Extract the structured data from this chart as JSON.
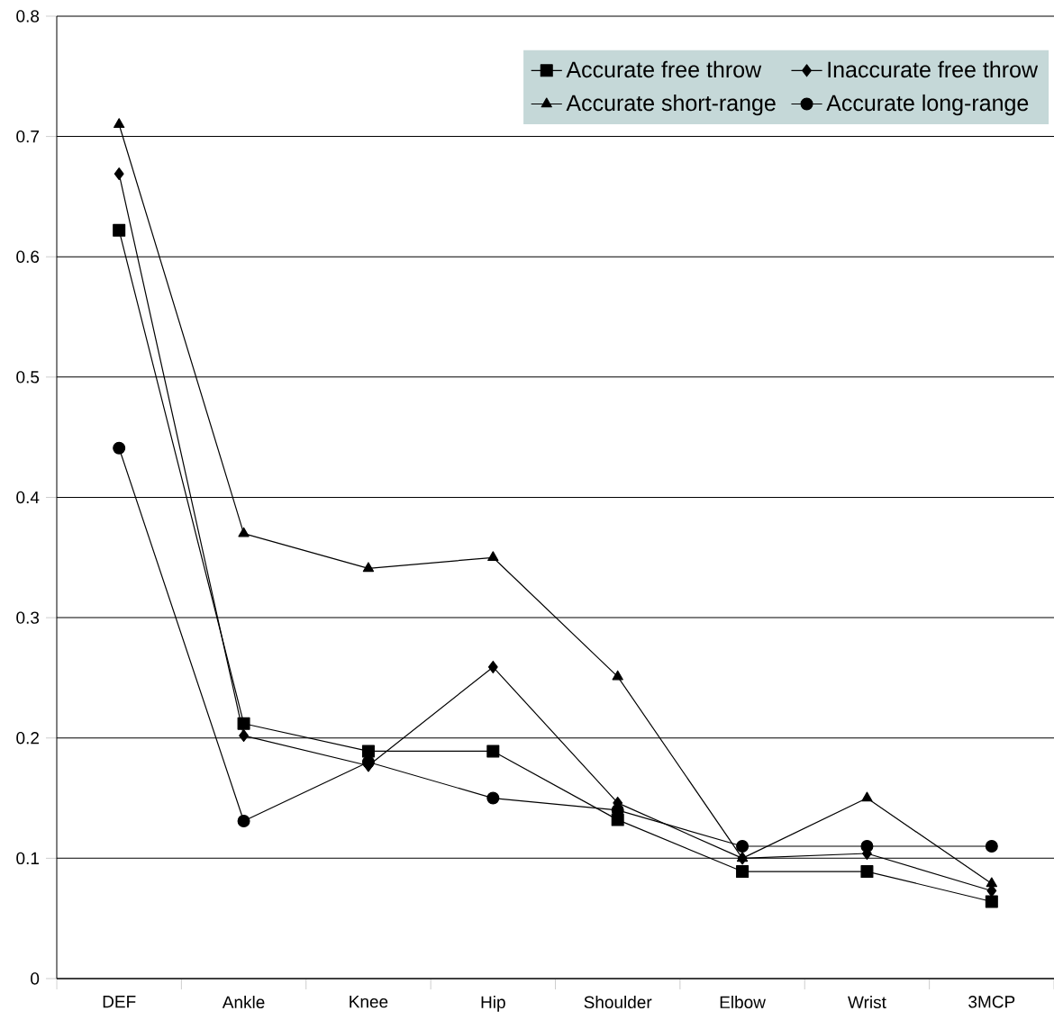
{
  "chart_data": {
    "type": "line",
    "categories": [
      "DEF",
      "Ankle",
      "Knee",
      "Hip",
      "Shoulder",
      "Elbow",
      "Wrist",
      "3MCP"
    ],
    "series": [
      {
        "name": "Accurate free throw",
        "color": "#000000",
        "marker": "square",
        "values": [
          0.622,
          0.212,
          0.189,
          0.189,
          0.132,
          0.089,
          0.089,
          0.064
        ]
      },
      {
        "name": "Inaccurate free throw",
        "color": "#000000",
        "marker": "diamond",
        "values": [
          0.669,
          0.202,
          0.177,
          0.259,
          0.146,
          0.1,
          0.104,
          0.073
        ]
      },
      {
        "name": "Accurate short-range",
        "color": "#000000",
        "marker": "triangle",
        "values": [
          0.71,
          0.37,
          0.341,
          0.35,
          0.251,
          0.1,
          0.15,
          0.079
        ]
      },
      {
        "name": "Accurate long-range",
        "color": "#000000",
        "marker": "circle",
        "values": [
          0.441,
          0.131,
          0.18,
          0.15,
          0.14,
          0.11,
          0.11,
          0.11
        ]
      }
    ],
    "ylim": [
      0,
      0.8
    ],
    "yticks": [
      0,
      0.1,
      0.2,
      0.3,
      0.4,
      0.5,
      0.6,
      0.7,
      0.8
    ],
    "grid": "y",
    "legend": "top right",
    "line_style": "solid"
  }
}
